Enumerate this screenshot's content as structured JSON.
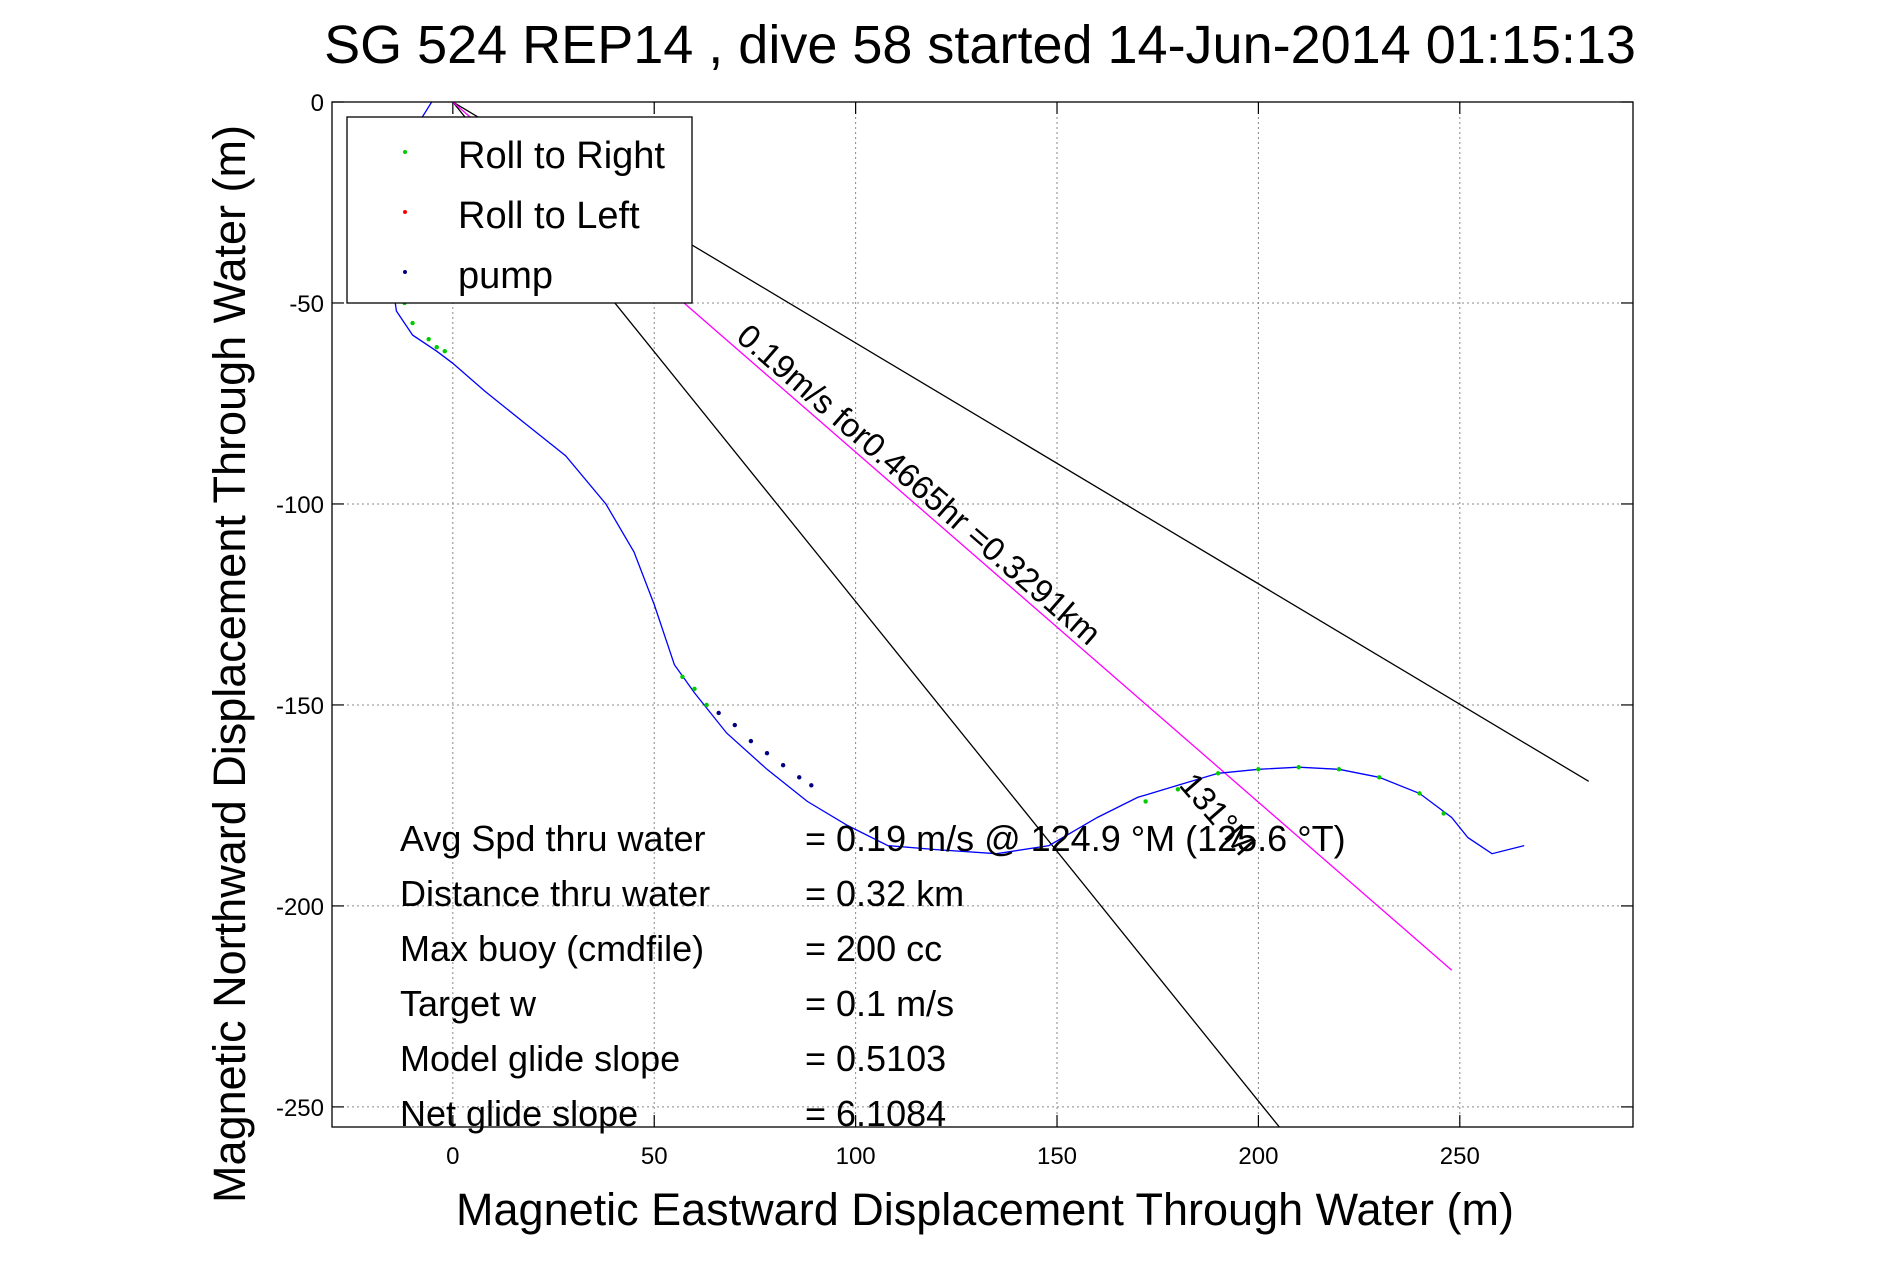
{
  "chart_data": {
    "type": "line",
    "title": "SG 524   REP14  , dive 58 started 14-Jun-2014 01:15:13",
    "xlabel": "Magnetic Eastward Displacement Through Water (m)",
    "ylabel": "Magnetic Northward Displacement Through Water (m)",
    "xlim": [
      -30,
      293
    ],
    "ylim": [
      -255,
      0
    ],
    "x_ticks": [
      0,
      50,
      100,
      150,
      200,
      250
    ],
    "y_ticks": [
      0,
      -50,
      -100,
      -150,
      -200,
      -250
    ],
    "grid": true,
    "legend_position": "top-left",
    "legend": [
      {
        "label": "Roll to Right",
        "color": "#00cc00"
      },
      {
        "label": "Roll to Left",
        "color": "#ff0000"
      },
      {
        "label": "pump",
        "color": "#000080"
      }
    ],
    "track": {
      "color": "#0000ff",
      "x": [
        0,
        -4,
        -9,
        -12,
        -14,
        -15,
        -15,
        -14,
        -10,
        -4,
        0,
        8,
        18,
        28,
        38,
        45,
        50,
        55,
        60,
        68,
        78,
        88,
        98,
        108,
        120,
        135,
        148,
        160,
        170,
        180,
        190,
        200,
        210,
        220,
        230,
        240,
        248,
        252,
        258,
        266
      ],
      "y": [
        0,
        2,
        -6,
        -15,
        -25,
        -35,
        -45,
        -52,
        -58,
        -62,
        -65,
        -72,
        -80,
        -88,
        -100,
        -112,
        -125,
        -140,
        -147,
        -157,
        -166,
        -174,
        -180,
        -185,
        -186,
        -187,
        -185,
        -178,
        -173,
        -170,
        -167,
        -166,
        -165.5,
        -166,
        -168,
        -172,
        -178,
        -183,
        -187,
        -185
      ]
    },
    "roll_right_points": {
      "x": [
        -15,
        -14,
        -12,
        -10,
        -6,
        -4,
        -2,
        57,
        60,
        63,
        172,
        180,
        190,
        200,
        210,
        220,
        230,
        240,
        246
      ],
      "y": [
        -35,
        -45,
        -50,
        -55,
        -59,
        -61,
        -62,
        -143,
        -146,
        -150,
        -174,
        -171,
        -167,
        -166,
        -165.5,
        -166,
        -168,
        -172,
        -177
      ]
    },
    "pump_points": {
      "x": [
        66,
        70,
        74,
        78,
        82,
        86,
        89
      ],
      "y": [
        -152,
        -155,
        -159,
        -162,
        -165,
        -168,
        -170
      ]
    },
    "heading_lines": [
      {
        "color": "#000000",
        "x": [
          0,
          206
        ],
        "y": [
          0,
          -256
        ]
      },
      {
        "color": "#000000",
        "x": [
          0,
          282
        ],
        "y": [
          0,
          -169
        ]
      },
      {
        "color": "#ff00ff",
        "x": [
          0,
          248
        ],
        "y": [
          0,
          -216
        ]
      }
    ],
    "heading_line_label": "0.19m/s for0.4665hr =0.3291km",
    "heading_label": "131°M",
    "stats": [
      {
        "label": "Avg Spd thru water",
        "value": "=  0.19 m/s @ 124.9 °M (125.6 °T)"
      },
      {
        "label": "Distance thru water",
        "value": "=  0.32 km"
      },
      {
        "label": "Max buoy (cmdfile)",
        "value": "= 200 cc"
      },
      {
        "label": "Target w",
        "value": "= 0.1 m/s"
      },
      {
        "label": "Model glide slope",
        "value": "= 0.5103"
      },
      {
        "label": "Net glide slope",
        "value": "= 6.1084"
      }
    ]
  }
}
